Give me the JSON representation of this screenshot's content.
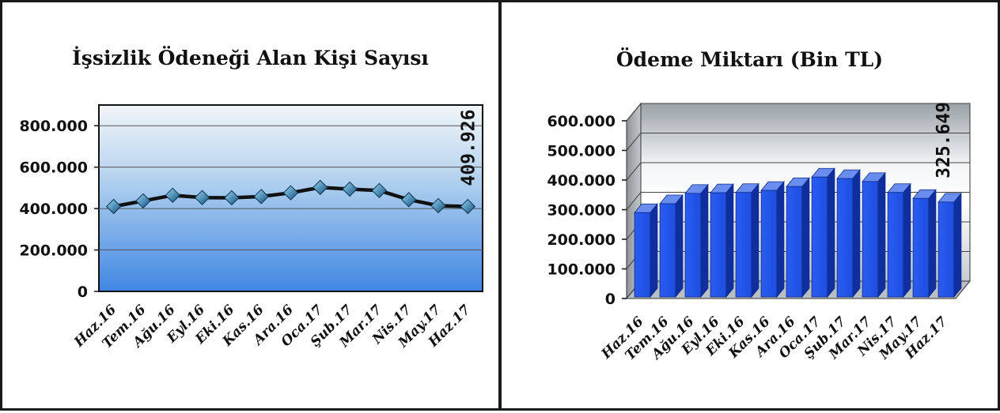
{
  "chart_data": [
    {
      "type": "line",
      "title": "İşsizlik Ödeneği Alan Kişi Sayısı",
      "categories": [
        "Haz.16",
        "Tem.16",
        "Ağu.16",
        "Eyl.16",
        "Eki.16",
        "Kas.16",
        "Ara.16",
        "Oca.17",
        "Şub.17",
        "Mar.17",
        "Nis.17",
        "May.17",
        "Haz.17"
      ],
      "values": [
        410000,
        437000,
        464000,
        453000,
        452000,
        458000,
        476000,
        502000,
        494000,
        487000,
        443000,
        414000,
        409926
      ],
      "ylim": [
        0,
        900000
      ],
      "yticks": [
        0,
        200000,
        400000,
        600000,
        800000
      ],
      "ytick_labels": [
        "0",
        "200.000",
        "400.000",
        "600.000",
        "800.000"
      ],
      "data_label": "409.926",
      "grid": true,
      "colors": {
        "line": "#111111",
        "marker": "#2e86c1",
        "plot_top": "#f2f5f8",
        "plot_bottom": "#3f86e3"
      }
    },
    {
      "type": "bar",
      "title": "Ödeme Miktarı (Bin TL)",
      "categories": [
        "Haz.16",
        "Tem.16",
        "Ağu.16",
        "Eyl.16",
        "Eki.16",
        "Kas.16",
        "Ara.16",
        "Oca.17",
        "Şub.17",
        "Mar.17",
        "Nis.17",
        "May.17",
        "Haz.17"
      ],
      "values": [
        290000,
        320000,
        355000,
        357000,
        358000,
        365000,
        378000,
        410000,
        405000,
        395000,
        358000,
        338000,
        325649
      ],
      "ylim": [
        0,
        600000
      ],
      "yticks": [
        0,
        100000,
        200000,
        300000,
        400000,
        500000,
        600000
      ],
      "ytick_labels": [
        "0",
        "100.000",
        "200.000",
        "300.000",
        "400.000",
        "500.000",
        "600.000"
      ],
      "data_label": "325.649",
      "grid": true,
      "colors": {
        "bar": "#1c4fe0",
        "bar_side": "#0f2f9e",
        "bar_top": "#6a8df0",
        "wall_top": "#d6dade",
        "wall_mid": "#ffffff",
        "wall_bottom": "#cfd4d8"
      }
    }
  ]
}
